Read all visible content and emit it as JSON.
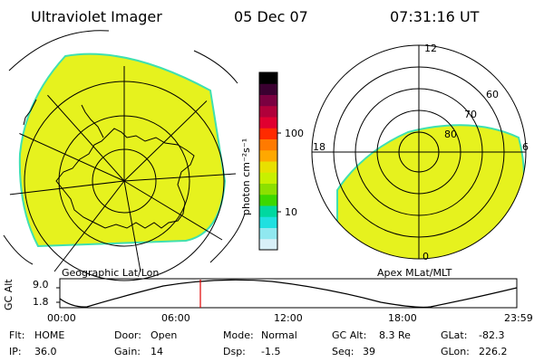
{
  "header": {
    "instrument": "Ultraviolet Imager",
    "date": "05 Dec 07",
    "time": "07:31:16 UT"
  },
  "colorbar": {
    "unit_label": "photon cm⁻²s⁻¹",
    "ticks": [
      "100",
      "10"
    ],
    "colors": [
      "#000000",
      "#3a0030",
      "#7a0040",
      "#b0003a",
      "#e00030",
      "#ff2a00",
      "#ff7a00",
      "#ffa800",
      "#e8e000",
      "#c8f000",
      "#8ce000",
      "#3cd800",
      "#00d8a0",
      "#20e0e0",
      "#90e8f0",
      "#d8f0f8"
    ]
  },
  "geographic_map": {
    "label": "Geographic Lat/Lon",
    "fill_color": "#e6f21e",
    "edge_color": "#3fe0b0"
  },
  "polar_map": {
    "label": "Apex MLat/MLT",
    "mlt_labels": {
      "top": "12",
      "left": "18",
      "right": "6",
      "bottom": "0"
    },
    "lat_labels": [
      "60",
      "70",
      "80"
    ],
    "fill_color": "#e6f21e"
  },
  "altitude_plot": {
    "ylabel": "GC Alt",
    "yticks": [
      "9.0",
      "1.8"
    ],
    "xticks": [
      "00:00",
      "06:00",
      "12:00",
      "18:00",
      "23:59"
    ],
    "marker_time": "07:31",
    "marker_color": "#e00000"
  },
  "status": {
    "flt_label": "Flt:",
    "flt_value": "HOME",
    "ip_label": "IP:",
    "ip_value": "36.0",
    "door_label": "Door:",
    "door_value": "Open",
    "gain_label": "Gain:",
    "gain_value": "14",
    "mode_label": "Mode:",
    "mode_value": "Normal",
    "dsp_label": "Dsp:",
    "dsp_value": "-1.5",
    "gcalt_label": "GC Alt:",
    "gcalt_value": "8.3 Re",
    "seq_label": "Seq:",
    "seq_value": "39",
    "glat_label": "GLat:",
    "glat_value": "-82.3",
    "glon_label": "GLon:",
    "glon_value": "226.2"
  }
}
